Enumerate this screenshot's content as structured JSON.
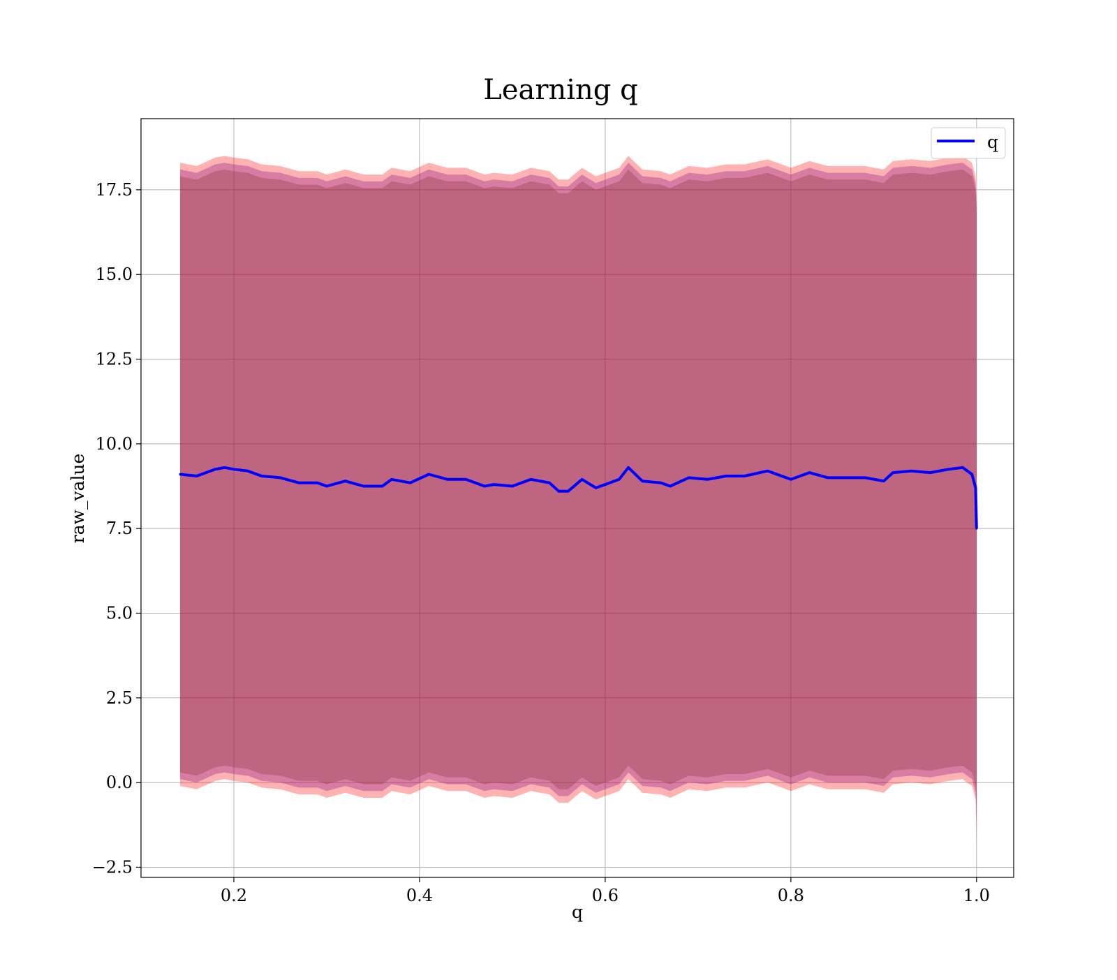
{
  "chart_data": {
    "type": "line",
    "title": "Learning q",
    "xlabel": "q",
    "ylabel": "raw_value",
    "xlim": [
      0.1,
      1.04
    ],
    "ylim": [
      -2.8,
      19.6
    ],
    "x_ticks": [
      0.2,
      0.4,
      0.6,
      0.8,
      1.0
    ],
    "x_tick_labels": [
      "0.2",
      "0.4",
      "0.6",
      "0.8",
      "1.0"
    ],
    "y_ticks": [
      -2.5,
      0.0,
      2.5,
      5.0,
      7.5,
      10.0,
      12.5,
      15.0,
      17.5
    ],
    "y_tick_labels": [
      "−2.5",
      "0.0",
      "2.5",
      "5.0",
      "7.5",
      "10.0",
      "12.5",
      "15.0",
      "17.5"
    ],
    "grid": true,
    "legend": {
      "position": "upper right",
      "entries": [
        "q"
      ]
    },
    "series": [
      {
        "name": "q",
        "color": "#0000ff",
        "x": [
          0.142,
          0.16,
          0.18,
          0.19,
          0.2,
          0.215,
          0.23,
          0.25,
          0.27,
          0.29,
          0.3,
          0.32,
          0.34,
          0.36,
          0.37,
          0.39,
          0.41,
          0.43,
          0.45,
          0.47,
          0.48,
          0.5,
          0.52,
          0.54,
          0.55,
          0.56,
          0.575,
          0.59,
          0.6,
          0.615,
          0.625,
          0.64,
          0.66,
          0.67,
          0.69,
          0.71,
          0.73,
          0.75,
          0.775,
          0.79,
          0.8,
          0.82,
          0.84,
          0.86,
          0.88,
          0.9,
          0.91,
          0.93,
          0.95,
          0.97,
          0.985,
          0.995,
          0.999,
          1.0
        ],
        "y": [
          9.1,
          9.05,
          9.25,
          9.3,
          9.25,
          9.2,
          9.05,
          9.0,
          8.85,
          8.85,
          8.75,
          8.9,
          8.75,
          8.75,
          8.95,
          8.85,
          9.1,
          8.95,
          8.95,
          8.75,
          8.8,
          8.75,
          8.95,
          8.85,
          8.6,
          8.6,
          8.95,
          8.7,
          8.8,
          8.95,
          9.3,
          8.9,
          8.85,
          8.75,
          9.0,
          8.95,
          9.05,
          9.05,
          9.2,
          9.05,
          8.95,
          9.15,
          9.0,
          9.0,
          9.0,
          8.9,
          9.15,
          9.2,
          9.15,
          9.25,
          9.3,
          9.1,
          8.7,
          7.5
        ],
        "band_inner": {
          "color": "#8b4513",
          "low": [
            0.3,
            0.2,
            0.45,
            0.5,
            0.45,
            0.4,
            0.25,
            0.2,
            0.05,
            0.05,
            -0.05,
            0.1,
            -0.05,
            -0.05,
            0.15,
            0.05,
            0.3,
            0.15,
            0.15,
            -0.05,
            0.0,
            -0.05,
            0.15,
            0.05,
            -0.2,
            -0.2,
            0.15,
            -0.1,
            0.0,
            0.15,
            0.5,
            0.1,
            0.05,
            -0.05,
            0.2,
            0.15,
            0.25,
            0.25,
            0.4,
            0.25,
            0.15,
            0.35,
            0.2,
            0.2,
            0.2,
            0.1,
            0.35,
            0.4,
            0.35,
            0.45,
            0.5,
            0.3,
            -0.1,
            -0.7
          ],
          "high": [
            17.9,
            17.8,
            18.05,
            18.1,
            18.05,
            18.0,
            17.85,
            17.8,
            17.65,
            17.65,
            17.55,
            17.7,
            17.55,
            17.55,
            17.75,
            17.65,
            17.9,
            17.75,
            17.75,
            17.55,
            17.6,
            17.55,
            17.75,
            17.65,
            17.4,
            17.4,
            17.75,
            17.5,
            17.6,
            17.75,
            18.1,
            17.7,
            17.65,
            17.55,
            17.8,
            17.75,
            17.85,
            17.85,
            18.0,
            17.85,
            17.75,
            17.95,
            17.8,
            17.8,
            17.8,
            17.7,
            17.95,
            18.0,
            17.95,
            18.05,
            18.1,
            17.9,
            17.5,
            16.7
          ]
        },
        "band_outer": {
          "color": "#ff0000",
          "low": [
            -0.1,
            -0.2,
            0.05,
            0.1,
            0.05,
            0.0,
            -0.15,
            -0.2,
            -0.35,
            -0.35,
            -0.45,
            -0.3,
            -0.45,
            -0.45,
            -0.25,
            -0.35,
            -0.1,
            -0.25,
            -0.25,
            -0.45,
            -0.4,
            -0.45,
            -0.25,
            -0.35,
            -0.6,
            -0.6,
            -0.25,
            -0.5,
            -0.4,
            -0.25,
            0.1,
            -0.3,
            -0.35,
            -0.45,
            -0.2,
            -0.25,
            -0.15,
            -0.15,
            0.0,
            -0.15,
            -0.25,
            -0.05,
            -0.2,
            -0.2,
            -0.2,
            -0.3,
            -0.05,
            0.0,
            -0.05,
            0.05,
            0.1,
            -0.1,
            -0.5,
            -1.8
          ],
          "high": [
            18.3,
            18.2,
            18.45,
            18.5,
            18.45,
            18.4,
            18.25,
            18.2,
            18.05,
            18.05,
            17.95,
            18.1,
            17.95,
            17.95,
            18.15,
            18.05,
            18.3,
            18.15,
            18.15,
            17.95,
            18.0,
            17.95,
            18.15,
            18.05,
            17.8,
            17.8,
            18.15,
            17.9,
            18.0,
            18.15,
            18.5,
            18.1,
            18.05,
            17.95,
            18.2,
            18.15,
            18.25,
            18.25,
            18.4,
            18.25,
            18.15,
            18.35,
            18.2,
            18.2,
            18.2,
            18.1,
            18.35,
            18.4,
            18.35,
            18.45,
            18.5,
            18.3,
            17.9,
            17.1
          ]
        },
        "band_core": {
          "color": "#800080",
          "low": [
            0.1,
            0.0,
            0.25,
            0.3,
            0.25,
            0.2,
            0.05,
            0.0,
            -0.15,
            -0.15,
            -0.25,
            -0.1,
            -0.25,
            -0.25,
            -0.05,
            -0.15,
            0.1,
            -0.05,
            -0.05,
            -0.25,
            -0.2,
            -0.25,
            -0.05,
            -0.15,
            -0.4,
            -0.4,
            -0.05,
            -0.3,
            -0.2,
            -0.05,
            0.3,
            -0.1,
            -0.15,
            -0.25,
            0.0,
            -0.05,
            0.05,
            0.05,
            0.2,
            0.05,
            -0.05,
            0.15,
            0.0,
            0.0,
            0.0,
            -0.1,
            0.15,
            0.2,
            0.15,
            0.25,
            0.3,
            0.1,
            -0.3,
            -1.2
          ],
          "high": [
            18.1,
            18.0,
            18.25,
            18.3,
            18.25,
            18.2,
            18.05,
            18.0,
            17.85,
            17.85,
            17.75,
            17.9,
            17.75,
            17.75,
            17.95,
            17.85,
            18.1,
            17.95,
            17.95,
            17.75,
            17.8,
            17.75,
            17.95,
            17.85,
            17.6,
            17.6,
            17.95,
            17.7,
            17.8,
            17.95,
            18.3,
            17.9,
            17.85,
            17.75,
            18.0,
            17.95,
            18.05,
            18.05,
            18.2,
            18.05,
            17.95,
            18.15,
            18.0,
            18.0,
            18.0,
            17.9,
            18.15,
            18.2,
            18.15,
            18.25,
            18.3,
            18.1,
            17.7,
            16.9
          ]
        }
      }
    ]
  }
}
